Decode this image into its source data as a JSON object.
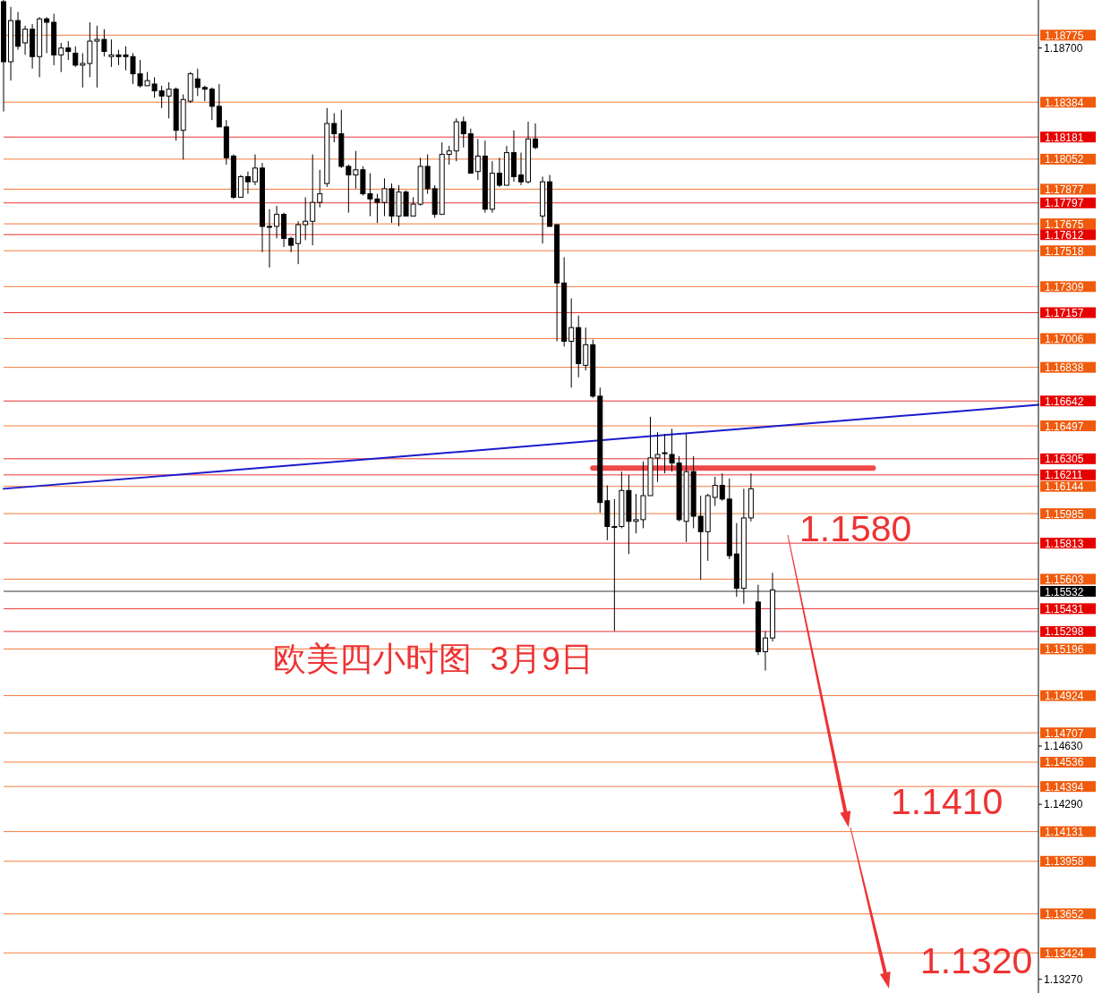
{
  "chart_data": {
    "type": "candlestick",
    "title": "欧美四小时图  3月9日",
    "color": "#000000",
    "categories": [
      null,
      null,
      null,
      null,
      null,
      null,
      null,
      null,
      null,
      null,
      null,
      null,
      null,
      null,
      null,
      null,
      null,
      null,
      null,
      null,
      null,
      null,
      null,
      null,
      null,
      null,
      null,
      null,
      null,
      null,
      null,
      null,
      null,
      null,
      null,
      null,
      null,
      null,
      null,
      null,
      null,
      null,
      null,
      null,
      null,
      null,
      null,
      null,
      null,
      null,
      null,
      null,
      null,
      null,
      null,
      null,
      null,
      null,
      null,
      null,
      null,
      null,
      null,
      null,
      null,
      null,
      null,
      null,
      null,
      null,
      null,
      null,
      null,
      null,
      null,
      null,
      null,
      null,
      null,
      null,
      null,
      null,
      null,
      null,
      null,
      null,
      null,
      null,
      null,
      null,
      null,
      null,
      null,
      null,
      null,
      null,
      null,
      null,
      null,
      null,
      null,
      null,
      null,
      null,
      null,
      null,
      null,
      null,
      null,
      null,
      null,
      null,
      null,
      null,
      null,
      null,
      null,
      null,
      null,
      null,
      null,
      null,
      null,
      null,
      null,
      null,
      null,
      null,
      null,
      null,
      null,
      null,
      null,
      null,
      null,
      null,
      null,
      null,
      null,
      null,
      null,
      null,
      null,
      null,
      null
    ],
    "ohlc": [
      [
        1.1897,
        1.1898,
        1.1833,
        1.1862
      ],
      [
        1.1862,
        1.1894,
        1.1851,
        1.1886
      ],
      [
        1.1886,
        1.1891,
        1.1869,
        1.1871
      ],
      [
        1.1873,
        1.1883,
        1.1866,
        1.1881
      ],
      [
        1.1881,
        1.1884,
        1.1858,
        1.1865
      ],
      [
        1.1865,
        1.1888,
        1.1853,
        1.1887
      ],
      [
        1.1887,
        1.1888,
        1.1867,
        1.1885
      ],
      [
        1.1885,
        1.189,
        1.186,
        1.1866
      ],
      [
        1.1866,
        1.1873,
        1.1856,
        1.187
      ],
      [
        1.187,
        1.1874,
        1.1863,
        1.1868
      ],
      [
        1.1867,
        1.1871,
        1.1859,
        1.186
      ],
      [
        1.186,
        1.1867,
        1.1847,
        1.1861
      ],
      [
        1.1861,
        1.1885,
        1.1853,
        1.1874
      ],
      [
        1.1874,
        1.1883,
        1.1847,
        1.1875
      ],
      [
        1.1875,
        1.1881,
        1.1865,
        1.1868
      ],
      [
        1.1865,
        1.1875,
        1.1859,
        1.1866
      ],
      [
        1.1866,
        1.1869,
        1.186,
        1.1865
      ],
      [
        1.1866,
        1.1871,
        1.1857,
        1.1865
      ],
      [
        1.1865,
        1.1867,
        1.1849,
        1.1855
      ],
      [
        1.1855,
        1.1863,
        1.1847,
        1.1848
      ],
      [
        1.1848,
        1.1856,
        1.1848,
        1.1851
      ],
      [
        1.1849,
        1.1853,
        1.1841,
        1.1845
      ],
      [
        1.1845,
        1.1848,
        1.1835,
        1.1842
      ],
      [
        1.1842,
        1.185,
        1.1829,
        1.1846
      ],
      [
        1.1846,
        1.1847,
        1.1816,
        1.1822
      ],
      [
        1.1822,
        1.1843,
        1.1805,
        1.184
      ],
      [
        1.1839,
        1.1856,
        1.1838,
        1.1855
      ],
      [
        1.1852,
        1.1858,
        1.1842,
        1.1847
      ],
      [
        1.1847,
        1.1848,
        1.1839,
        1.1846
      ],
      [
        1.1846,
        1.1847,
        1.1828,
        1.1836
      ],
      [
        1.1836,
        1.1849,
        1.1824,
        1.1824
      ],
      [
        1.1824,
        1.1828,
        1.1802,
        1.1806
      ],
      [
        1.1807,
        1.1808,
        1.1782,
        1.1783
      ],
      [
        1.1783,
        1.1796,
        1.1783,
        1.1795
      ],
      [
        1.1795,
        1.1798,
        1.1785,
        1.1792
      ],
      [
        1.1792,
        1.1808,
        1.179,
        1.18
      ],
      [
        1.18,
        1.1803,
        1.1751,
        1.1766
      ],
      [
        1.1766,
        1.1776,
        1.1742,
        1.1766
      ],
      [
        1.1766,
        1.1778,
        1.1759,
        1.1773
      ],
      [
        1.1773,
        1.1774,
        1.1754,
        1.1759
      ],
      [
        1.1759,
        1.176,
        1.1751,
        1.1755
      ],
      [
        1.1756,
        1.1769,
        1.1744,
        1.1767
      ],
      [
        1.1767,
        1.1783,
        1.1758,
        1.1769
      ],
      [
        1.1769,
        1.1808,
        1.1755,
        1.178
      ],
      [
        1.178,
        1.1799,
        1.1777,
        1.1785
      ],
      [
        1.1791,
        1.1835,
        1.1789,
        1.1826
      ],
      [
        1.1826,
        1.1832,
        1.1815,
        1.182
      ],
      [
        1.182,
        1.1834,
        1.18,
        1.1801
      ],
      [
        1.1801,
        1.1802,
        1.1774,
        1.1796
      ],
      [
        1.1796,
        1.181,
        1.1788,
        1.1799
      ],
      [
        1.1799,
        1.1801,
        1.1784,
        1.1785
      ],
      [
        1.1785,
        1.1797,
        1.1772,
        1.1782
      ],
      [
        1.1782,
        1.1785,
        1.1768,
        1.178
      ],
      [
        1.178,
        1.1794,
        1.1772,
        1.1788
      ],
      [
        1.1788,
        1.1791,
        1.1768,
        1.1772
      ],
      [
        1.1772,
        1.179,
        1.1766,
        1.1786
      ],
      [
        1.1786,
        1.1787,
        1.1772,
        1.1772
      ],
      [
        1.1772,
        1.1783,
        1.1772,
        1.1779
      ],
      [
        1.1779,
        1.1806,
        1.1778,
        1.1801
      ],
      [
        1.1801,
        1.1808,
        1.1785,
        1.1788
      ],
      [
        1.1788,
        1.179,
        1.1771,
        1.1773
      ],
      [
        1.1773,
        1.1815,
        1.1773,
        1.1808
      ],
      [
        1.1808,
        1.1813,
        1.1802,
        1.181
      ],
      [
        1.181,
        1.1829,
        1.1804,
        1.1827
      ],
      [
        1.1827,
        1.183,
        1.1812,
        1.182
      ],
      [
        1.182,
        1.1823,
        1.1797,
        1.1797
      ],
      [
        1.1798,
        1.1817,
        1.1793,
        1.1807
      ],
      [
        1.1807,
        1.1816,
        1.1774,
        1.1776
      ],
      [
        1.1776,
        1.1804,
        1.1774,
        1.1797
      ],
      [
        1.1797,
        1.1806,
        1.1789,
        1.179
      ],
      [
        1.179,
        1.1813,
        1.179,
        1.1809
      ],
      [
        1.1809,
        1.1822,
        1.1792,
        1.1795
      ],
      [
        1.1796,
        1.1809,
        1.179,
        1.1792
      ],
      [
        1.1792,
        1.1827,
        1.1791,
        1.1817
      ],
      [
        1.1817,
        1.1826,
        1.1811,
        1.1812
      ],
      [
        1.1772,
        1.1795,
        1.1756,
        1.1792
      ],
      [
        1.1792,
        1.1796,
        1.1766,
        1.1766
      ],
      [
        1.1767,
        1.1767,
        1.1699,
        1.1733
      ],
      [
        1.1733,
        1.1748,
        1.1696,
        1.1699
      ],
      [
        1.1699,
        1.1724,
        1.1672,
        1.1707
      ],
      [
        1.1707,
        1.1714,
        1.1678,
        1.1686
      ],
      [
        1.1685,
        1.1707,
        1.1682,
        1.1697
      ],
      [
        1.1697,
        1.17,
        1.1666,
        1.1667
      ],
      [
        1.1667,
        1.1672,
        1.1599,
        1.1605
      ],
      [
        1.1606,
        1.1615,
        1.1583,
        1.1591
      ],
      [
        1.1591,
        1.1607,
        1.153,
        1.1591
      ],
      [
        1.1591,
        1.1623,
        1.159,
        1.1612
      ],
      [
        1.1612,
        1.1621,
        1.1575,
        1.1594
      ],
      [
        1.1594,
        1.161,
        1.1587,
        1.1595
      ],
      [
        1.1595,
        1.1629,
        1.159,
        1.1609
      ],
      [
        1.1609,
        1.1655,
        1.1609,
        1.1631
      ],
      [
        1.1631,
        1.1646,
        1.1617,
        1.1633
      ],
      [
        1.1634,
        1.1645,
        1.1622,
        1.1634
      ],
      [
        1.1633,
        1.1648,
        1.1623,
        1.1628
      ],
      [
        1.1628,
        1.1632,
        1.1594,
        1.1595
      ],
      [
        1.1594,
        1.1645,
        1.1582,
        1.1623
      ],
      [
        1.1623,
        1.1632,
        1.159,
        1.1597
      ],
      [
        1.1597,
        1.1609,
        1.156,
        1.1588
      ],
      [
        1.1588,
        1.161,
        1.1571,
        1.1609
      ],
      [
        1.1608,
        1.162,
        1.1603,
        1.1615
      ],
      [
        1.1615,
        1.1622,
        1.1606,
        1.1607
      ],
      [
        1.1607,
        1.1619,
        1.1572,
        1.1574
      ],
      [
        1.1575,
        1.1593,
        1.155,
        1.1555
      ],
      [
        1.1555,
        1.1613,
        1.1546,
        1.1596
      ],
      [
        1.1596,
        1.1622,
        1.1594,
        1.1613
      ],
      [
        1.1547,
        1.1557,
        1.1516,
        1.1518
      ],
      [
        1.1518,
        1.153,
        1.1507,
        1.1526
      ],
      [
        1.1526,
        1.1564,
        1.1524,
        1.1554
      ],
      null,
      null,
      null,
      null,
      null,
      null,
      null,
      null,
      null,
      null,
      null,
      null,
      null,
      null,
      null,
      null,
      null,
      null,
      null,
      null,
      null,
      null,
      null,
      null,
      null,
      null,
      null,
      null,
      null,
      null,
      null,
      null,
      null,
      null,
      null,
      null,
      null
    ],
    "series": [
      {
        "type": "line",
        "color": "#1a1acc",
        "values": [
          1.1613,
          null,
          null,
          null,
          null,
          null,
          null,
          null,
          null,
          null,
          null,
          null,
          null,
          null,
          null,
          null,
          null,
          null,
          null,
          null,
          null,
          null,
          null,
          null,
          null,
          null,
          null,
          null,
          null,
          null,
          null,
          null,
          null,
          null,
          null,
          null,
          null,
          null,
          null,
          null,
          null,
          null,
          null,
          null,
          null,
          null,
          null,
          null,
          null,
          null,
          null,
          null,
          null,
          null,
          null,
          null,
          null,
          null,
          null,
          null,
          null,
          null,
          null,
          null,
          null,
          null,
          null,
          null,
          null,
          null,
          null,
          null,
          null,
          null,
          null,
          null,
          null,
          null,
          null,
          null,
          null,
          null,
          null,
          null,
          null,
          null,
          null,
          null,
          null,
          null,
          null,
          null,
          null,
          null,
          null,
          null,
          null,
          null,
          null,
          null,
          null,
          null,
          null,
          null,
          null,
          null,
          null,
          null,
          null,
          null,
          null,
          null,
          null,
          null,
          null,
          null,
          null,
          null,
          null,
          null,
          null,
          null,
          null,
          null,
          null,
          null,
          null,
          null,
          null,
          null,
          null,
          null,
          null,
          null,
          null,
          null,
          null,
          null,
          null,
          null,
          null,
          null,
          null,
          null,
          1.1662
        ]
      },
      {
        "type": "line",
        "color": "#f04848",
        "values": [
          null,
          null,
          null,
          null,
          null,
          null,
          null,
          null,
          null,
          null,
          null,
          null,
          null,
          null,
          null,
          null,
          null,
          null,
          null,
          null,
          null,
          null,
          null,
          null,
          null,
          null,
          null,
          null,
          null,
          null,
          null,
          null,
          null,
          null,
          null,
          null,
          null,
          null,
          null,
          null,
          null,
          null,
          null,
          null,
          null,
          null,
          null,
          null,
          null,
          null,
          null,
          null,
          null,
          null,
          null,
          null,
          null,
          null,
          null,
          null,
          null,
          null,
          null,
          null,
          null,
          null,
          null,
          null,
          null,
          null,
          null,
          null,
          null,
          null,
          null,
          null,
          null,
          null,
          null,
          null,
          null,
          null,
          1.1625,
          null,
          null,
          null,
          null,
          null,
          null,
          null,
          null,
          null,
          null,
          null,
          null,
          null,
          null,
          null,
          null,
          null,
          null,
          null,
          null,
          null,
          null,
          null,
          null,
          null,
          null,
          null,
          null,
          null,
          null,
          null,
          null,
          null,
          null,
          null,
          null,
          null,
          null,
          1.1625,
          null,
          null,
          null,
          null,
          null,
          null,
          null,
          null,
          null,
          null,
          null,
          null,
          null,
          null,
          null,
          null,
          null,
          null,
          null,
          null,
          null,
          null,
          null
        ]
      }
    ],
    "ylim": [
      1.1319,
      1.1898
    ],
    "yticks": [
      {
        "value": 1.187,
        "label": "1.18700"
      },
      {
        "value": 1.1463,
        "label": "1.14630"
      },
      {
        "value": 1.1429,
        "label": "1.14290"
      },
      {
        "value": 1.1327,
        "label": "1.13270"
      }
    ],
    "tick_labels": "y",
    "ref_lines": [
      {
        "axis": "y",
        "value": 1.18775,
        "label": "1.18775",
        "color": "#f05a0c"
      },
      {
        "axis": "y",
        "value": 1.18384,
        "label": "1.18384",
        "color": "#f05a0c"
      },
      {
        "axis": "y",
        "value": 1.18181,
        "label": "1.18181",
        "color": "#e60000"
      },
      {
        "axis": "y",
        "value": 1.18052,
        "label": "1.18052",
        "color": "#f05a0c"
      },
      {
        "axis": "y",
        "value": 1.17877,
        "label": "1.17877",
        "color": "#f05a0c"
      },
      {
        "axis": "y",
        "value": 1.17797,
        "label": "1.17797",
        "color": "#e60000"
      },
      {
        "axis": "y",
        "value": 1.17675,
        "label": "1.17675",
        "color": "#f05a0c"
      },
      {
        "axis": "y",
        "value": 1.17612,
        "label": "1.17612",
        "color": "#e60000"
      },
      {
        "axis": "y",
        "value": 1.17518,
        "label": "1.17518",
        "color": "#f05a0c"
      },
      {
        "axis": "y",
        "value": 1.17309,
        "label": "1.17309",
        "color": "#f05a0c"
      },
      {
        "axis": "y",
        "value": 1.17157,
        "label": "1.17157",
        "color": "#e60000"
      },
      {
        "axis": "y",
        "value": 1.17006,
        "label": "1.17006",
        "color": "#f05a0c"
      },
      {
        "axis": "y",
        "value": 1.16838,
        "label": "1.16838",
        "color": "#f05a0c"
      },
      {
        "axis": "y",
        "value": 1.16642,
        "label": "1.16642",
        "color": "#e60000"
      },
      {
        "axis": "y",
        "value": 1.16497,
        "label": "1.16497",
        "color": "#f05a0c"
      },
      {
        "axis": "y",
        "value": 1.16305,
        "label": "1.16305",
        "color": "#e60000"
      },
      {
        "axis": "y",
        "value": 1.16211,
        "label": "1.16211",
        "color": "#e60000"
      },
      {
        "axis": "y",
        "value": 1.16144,
        "label": "1.16144",
        "color": "#f05a0c"
      },
      {
        "axis": "y",
        "value": 1.15985,
        "label": "1.15985",
        "color": "#f05a0c"
      },
      {
        "axis": "y",
        "value": 1.15813,
        "label": "1.15813",
        "color": "#e60000"
      },
      {
        "axis": "y",
        "value": 1.15603,
        "label": "1.15603",
        "color": "#f05a0c"
      },
      {
        "axis": "y",
        "value": 1.15532,
        "label": "1.15532",
        "color": "#000000"
      },
      {
        "axis": "y",
        "value": 1.15431,
        "label": "1.15431",
        "color": "#e60000"
      },
      {
        "axis": "y",
        "value": 1.15298,
        "label": "1.15298",
        "color": "#e60000"
      },
      {
        "axis": "y",
        "value": 1.15196,
        "label": "1.15196",
        "color": "#f05a0c"
      },
      {
        "axis": "y",
        "value": 1.14924,
        "label": "1.14924",
        "color": "#f05a0c"
      },
      {
        "axis": "y",
        "value": 1.14707,
        "label": "1.14707",
        "color": "#f05a0c"
      },
      {
        "axis": "y",
        "value": 1.14536,
        "label": "1.14536",
        "color": "#f05a0c"
      },
      {
        "axis": "y",
        "value": 1.14394,
        "label": "1.14394",
        "color": "#f05a0c"
      },
      {
        "axis": "y",
        "value": 1.14131,
        "label": "1.14131",
        "color": "#f05a0c"
      },
      {
        "axis": "y",
        "value": 1.13958,
        "label": "1.13958",
        "color": "#f05a0c"
      },
      {
        "axis": "y",
        "value": 1.13652,
        "label": "1.13652",
        "color": "#f05a0c"
      },
      {
        "axis": "y",
        "value": 1.13424,
        "label": "1.13424",
        "color": "#f05a0c"
      }
    ],
    "annotations": [
      "1.1580",
      "1.1410",
      "1.1320"
    ]
  }
}
